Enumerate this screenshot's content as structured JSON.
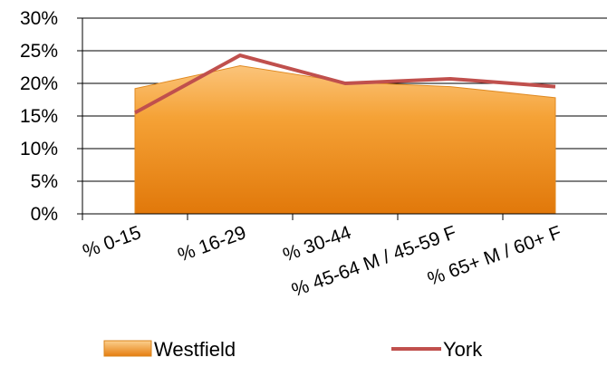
{
  "chart_data": {
    "type": "area",
    "categories": [
      "% 0-15",
      "% 16-29",
      "% 30-44",
      "% 45-64 M / 45-59 F",
      "% 65+ M / 60+ F"
    ],
    "series": [
      {
        "name": "Westfield",
        "type": "area",
        "values": [
          19.2,
          22.7,
          20.2,
          19.5,
          17.8
        ],
        "color": "#F39C1F"
      },
      {
        "name": "York",
        "type": "line",
        "values": [
          15.5,
          24.3,
          20.0,
          20.7,
          19.5
        ],
        "color": "#C0504D"
      }
    ],
    "y_ticks": [
      "0%",
      "5%",
      "10%",
      "15%",
      "20%",
      "25%",
      "30%"
    ],
    "ylim": [
      0,
      30
    ],
    "grid": "horizontal",
    "legend": "bottom"
  }
}
